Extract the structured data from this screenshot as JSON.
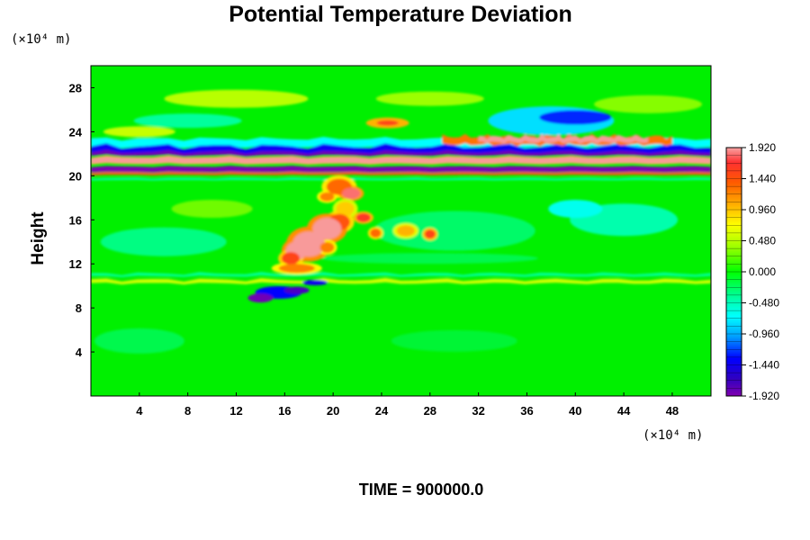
{
  "chart_data": {
    "type": "heatmap",
    "title": "Potential Temperature Deviation",
    "ylabel": "Height",
    "xlabel": "",
    "x_unit_label": "(×10⁴ m)",
    "y_unit_label": "(×10⁴ m)",
    "xlim": [
      0,
      51.2
    ],
    "ylim": [
      0,
      30
    ],
    "x_ticks": [
      4,
      8,
      12,
      16,
      20,
      24,
      28,
      32,
      36,
      40,
      44,
      48
    ],
    "y_ticks": [
      4,
      8,
      12,
      16,
      20,
      24,
      28
    ],
    "colorbar": {
      "min": -1.92,
      "max": 1.92,
      "tick_labels": [
        "1.920",
        "1.440",
        "0.960",
        "0.480",
        "0.000",
        "-0.480",
        "-0.960",
        "-1.440",
        "-1.920"
      ],
      "tick_values": [
        1.92,
        1.44,
        0.96,
        0.48,
        0.0,
        -0.48,
        -0.96,
        -1.44,
        -1.92
      ],
      "levels": 32
    },
    "features": [
      {
        "x": [
          0,
          51.2
        ],
        "y": 20.5,
        "value": -1.9
      },
      {
        "x": [
          0,
          51.2
        ],
        "y": 21.3,
        "value": 1.9
      },
      {
        "x": [
          0,
          51.2
        ],
        "y": 22.6,
        "value": -1.6
      },
      {
        "x": [
          30,
          48
        ],
        "y": 23.0,
        "value": 1.9
      },
      {
        "x": [
          34,
          46
        ],
        "y": 25.0,
        "value": -0.8
      },
      {
        "x": [
          24,
          26
        ],
        "y": 24.8,
        "value": 0.9
      },
      {
        "x": [
          16,
          19
        ],
        "y": 13.5,
        "value": 1.9
      },
      {
        "x": [
          19,
          22
        ],
        "y": 15.5,
        "value": 1.4
      },
      {
        "x": [
          20,
          23
        ],
        "y": 18.5,
        "value": 1.2
      },
      {
        "x": [
          13,
          18
        ],
        "y": 9.3,
        "value": -1.8
      },
      {
        "x": [
          0,
          51.2
        ],
        "y": 10.3,
        "value": 0.5
      }
    ]
  },
  "footer": {
    "time_label": "TIME = 900000.0"
  }
}
